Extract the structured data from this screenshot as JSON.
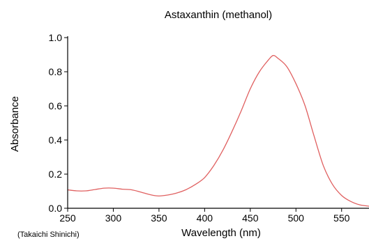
{
  "chart_data": {
    "type": "line",
    "title": "Astaxanthin (methanol)",
    "xlabel": "Wavelength (nm)",
    "ylabel": "Absorbance",
    "credit": "(Takaichi Shinichi)",
    "xlim": [
      250,
      580
    ],
    "ylim": [
      0.0,
      1.0
    ],
    "x_ticks": [
      250,
      300,
      350,
      400,
      450,
      500,
      550
    ],
    "y_ticks": [
      0.0,
      0.2,
      0.4,
      0.6,
      0.8,
      1.0
    ],
    "x_tick_labels": [
      "250",
      "300",
      "350",
      "400",
      "450",
      "500",
      "550"
    ],
    "y_tick_labels": [
      "0.0",
      "0.2",
      "0.4",
      "0.6",
      "0.8",
      "1.0"
    ],
    "grid": false,
    "line_color": "#e06060",
    "series": [
      {
        "x": [
          250,
          260,
          270,
          280,
          290,
          300,
          310,
          320,
          330,
          340,
          350,
          360,
          370,
          380,
          390,
          400,
          410,
          420,
          430,
          440,
          450,
          460,
          470,
          475,
          480,
          490,
          500,
          510,
          520,
          530,
          540,
          550,
          560,
          570,
          580
        ],
        "y": [
          0.108,
          0.102,
          0.102,
          0.11,
          0.118,
          0.118,
          0.112,
          0.108,
          0.095,
          0.08,
          0.072,
          0.078,
          0.09,
          0.11,
          0.14,
          0.18,
          0.25,
          0.34,
          0.45,
          0.57,
          0.7,
          0.8,
          0.87,
          0.895,
          0.88,
          0.83,
          0.73,
          0.6,
          0.42,
          0.25,
          0.14,
          0.075,
          0.04,
          0.02,
          0.012
        ]
      }
    ]
  }
}
